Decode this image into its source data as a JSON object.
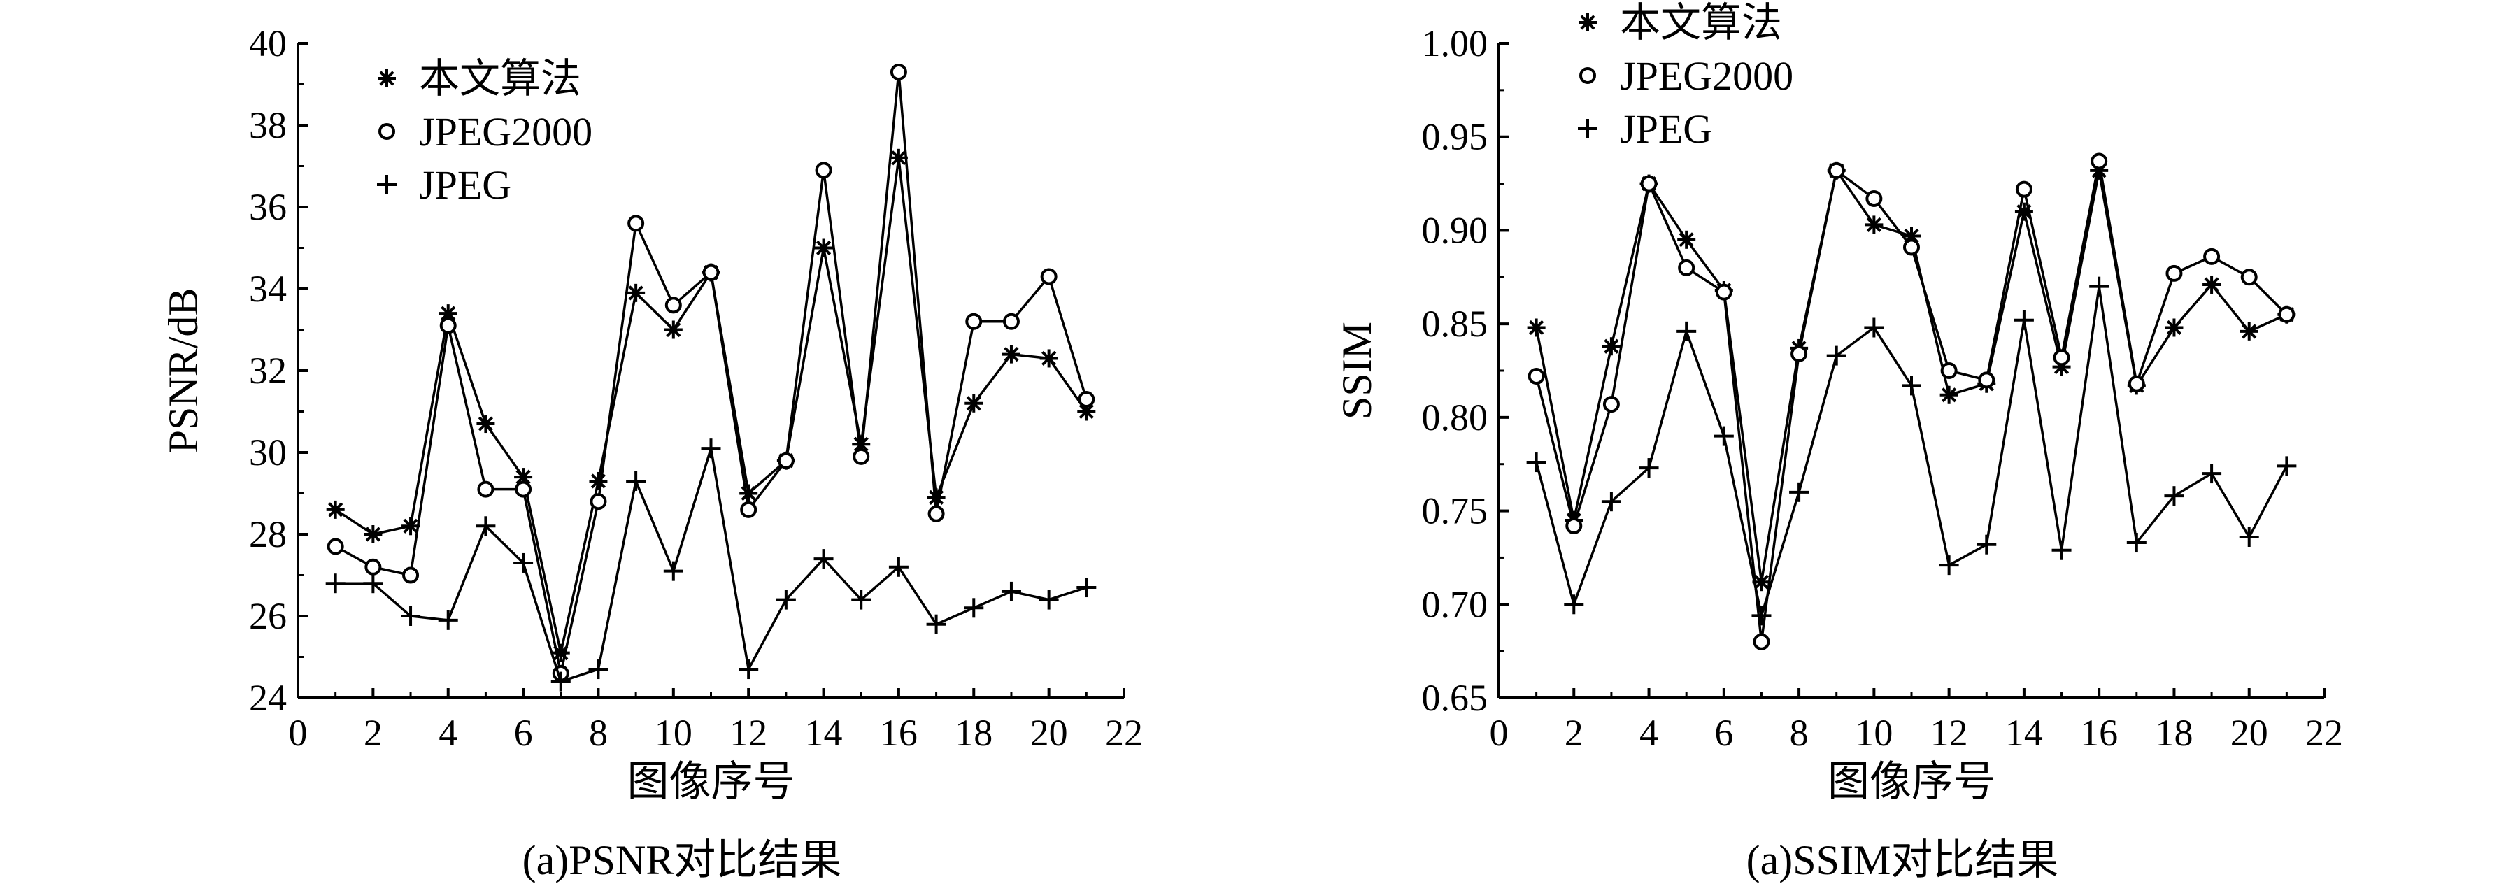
{
  "chart_data": [
    {
      "type": "line",
      "caption": "(a)PSNR对比结果",
      "xlabel": "图像序号",
      "ylabel": "PSNR/dB",
      "xlim": [
        0,
        22
      ],
      "ylim": [
        24,
        40
      ],
      "x_ticks": [
        0,
        2,
        4,
        6,
        8,
        10,
        12,
        14,
        16,
        18,
        20,
        22
      ],
      "y_ticks": [
        24,
        26,
        28,
        30,
        32,
        34,
        36,
        38,
        40
      ],
      "legend_position": "top-left",
      "x": [
        1,
        2,
        3,
        4,
        5,
        6,
        7,
        8,
        9,
        10,
        11,
        12,
        13,
        14,
        15,
        16,
        17,
        18,
        19,
        20,
        21
      ],
      "series": [
        {
          "name": "本文算法",
          "marker": "asterisk",
          "values": [
            28.6,
            28.0,
            28.2,
            33.4,
            30.7,
            29.4,
            25.1,
            29.3,
            33.9,
            33.0,
            34.4,
            29.0,
            29.8,
            35.0,
            30.2,
            37.2,
            28.9,
            31.2,
            32.4,
            32.3,
            31.0
          ]
        },
        {
          "name": "JPEG2000",
          "marker": "circle",
          "values": [
            27.7,
            27.2,
            27.0,
            33.1,
            29.1,
            29.1,
            24.6,
            28.8,
            35.6,
            33.6,
            34.4,
            28.6,
            29.8,
            36.9,
            29.9,
            39.3,
            28.5,
            33.2,
            33.2,
            34.3,
            31.3
          ]
        },
        {
          "name": "JPEG",
          "marker": "plus",
          "values": [
            26.8,
            26.8,
            26.0,
            25.9,
            28.2,
            27.3,
            24.4,
            24.7,
            29.3,
            27.1,
            30.1,
            24.7,
            26.4,
            27.4,
            26.4,
            27.2,
            25.8,
            26.2,
            26.6,
            26.4,
            26.7
          ]
        }
      ]
    },
    {
      "type": "line",
      "caption": "(a)SSIM对比结果",
      "xlabel": "图像序号",
      "ylabel": "SSIM",
      "xlim": [
        0,
        22
      ],
      "ylim": [
        0.65,
        1.0
      ],
      "x_ticks": [
        0,
        2,
        4,
        6,
        8,
        10,
        12,
        14,
        16,
        18,
        20,
        22
      ],
      "y_ticks": [
        0.65,
        0.7,
        0.75,
        0.8,
        0.85,
        0.9,
        0.95,
        1.0
      ],
      "y_tick_labels": [
        "0.65",
        "0.70",
        "0.75",
        "0.80",
        "0.85",
        "0.90",
        "0.95",
        "1.00"
      ],
      "legend_position": "top-left",
      "x": [
        1,
        2,
        3,
        4,
        5,
        6,
        7,
        8,
        9,
        10,
        11,
        12,
        13,
        14,
        15,
        16,
        17,
        18,
        19,
        20,
        21
      ],
      "series": [
        {
          "name": "本文算法",
          "marker": "asterisk",
          "values": [
            0.848,
            0.745,
            0.838,
            0.925,
            0.895,
            0.868,
            0.712,
            0.837,
            0.932,
            0.903,
            0.897,
            0.812,
            0.818,
            0.91,
            0.827,
            0.932,
            0.817,
            0.848,
            0.871,
            0.846,
            0.855
          ]
        },
        {
          "name": "JPEG2000",
          "marker": "circle",
          "values": [
            0.822,
            0.742,
            0.807,
            0.925,
            0.88,
            0.867,
            0.68,
            0.834,
            0.932,
            0.917,
            0.891,
            0.825,
            0.82,
            0.922,
            0.832,
            0.937,
            0.818,
            0.877,
            0.886,
            0.875,
            0.855
          ]
        },
        {
          "name": "JPEG",
          "marker": "plus",
          "values": [
            0.776,
            0.7,
            0.755,
            0.773,
            0.846,
            0.79,
            0.694,
            0.76,
            0.833,
            0.848,
            0.817,
            0.721,
            0.732,
            0.852,
            0.729,
            0.87,
            0.733,
            0.758,
            0.77,
            0.736,
            0.774
          ]
        }
      ]
    }
  ]
}
